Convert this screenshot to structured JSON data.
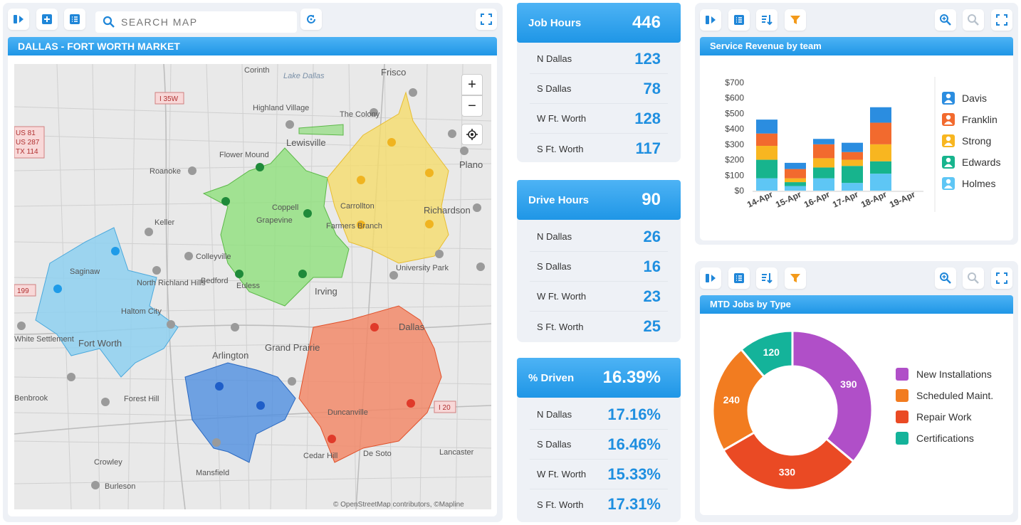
{
  "map_panel": {
    "search_placeholder": "SEARCH MAP",
    "title": "DALLAS - FORT WORTH MARKET",
    "attribution": "© OpenStreetMap contributors, ©Mapline",
    "zoom_in": "+",
    "zoom_out": "−",
    "places": [
      "Frisco",
      "Corinth",
      "Lake Dallas",
      "Highland Village",
      "The Colony",
      "Lewisville",
      "Flower Mound",
      "Roanoke",
      "Plano",
      "Coppell",
      "Grapevine",
      "Carrollton",
      "Farmers Branch",
      "Richardson",
      "Keller",
      "Colleyville",
      "Saginaw",
      "North Richland Hills",
      "Haltom City",
      "Bedford",
      "Euless",
      "Irving",
      "University Park",
      "Dallas",
      "Fort Worth",
      "White Settlement",
      "Arlington",
      "Grand Prairie",
      "Benbrook",
      "Forest Hill",
      "Duncanville",
      "Cedar Hill",
      "De Soto",
      "Lancaster",
      "Crowley",
      "Mansfield",
      "Burleson"
    ],
    "shields": [
      "I 35W",
      "US 81",
      "US 287",
      "TX 114",
      "199",
      "I 20"
    ]
  },
  "kpis": [
    {
      "label": "Job Hours",
      "value": "446",
      "rows": [
        {
          "label": "N Dallas",
          "value": "123"
        },
        {
          "label": "S Dallas",
          "value": "78"
        },
        {
          "label": "W Ft. Worth",
          "value": "128"
        },
        {
          "label": "S Ft. Worth",
          "value": "117"
        }
      ]
    },
    {
      "label": "Drive Hours",
      "value": "90",
      "rows": [
        {
          "label": "N Dallas",
          "value": "26"
        },
        {
          "label": "S Dallas",
          "value": "16"
        },
        {
          "label": "W Ft. Worth",
          "value": "23"
        },
        {
          "label": "S Ft. Worth",
          "value": "25"
        }
      ]
    },
    {
      "label": "% Driven",
      "value": "16.39%",
      "rows": [
        {
          "label": "N Dallas",
          "value": "17.16%"
        },
        {
          "label": "S Dallas",
          "value": "16.46%"
        },
        {
          "label": "W Ft. Worth",
          "value": "15.33%"
        },
        {
          "label": "S Ft. Worth",
          "value": "17.31%"
        }
      ]
    }
  ],
  "revenue_panel": {
    "title": "Service Revenue by team"
  },
  "jobs_panel": {
    "title": "MTD Jobs by Type"
  },
  "colors": {
    "accent": "#1f96e6",
    "kpi_value": "#1f8fe0",
    "filter": "#f39a1a"
  },
  "chart_data": [
    {
      "type": "bar",
      "stacked": true,
      "title": "Service Revenue by team",
      "categories": [
        "14-Apr",
        "15-Apr",
        "16-Apr",
        "17-Apr",
        "18-Apr",
        "19-Apr"
      ],
      "yticks": [
        "$0",
        "$100",
        "$200",
        "$300",
        "$400",
        "$500",
        "$600",
        "$700"
      ],
      "ylim": [
        0,
        700
      ],
      "legend_position": "right",
      "series": [
        {
          "name": "Holmes",
          "color": "#5ec6f5",
          "values": [
            80,
            30,
            80,
            50,
            110,
            0
          ]
        },
        {
          "name": "Edwards",
          "color": "#17b48d",
          "values": [
            120,
            25,
            70,
            110,
            80,
            0
          ]
        },
        {
          "name": "Strong",
          "color": "#f8b620",
          "values": [
            90,
            25,
            60,
            40,
            110,
            0
          ]
        },
        {
          "name": "Franklin",
          "color": "#f26a2e",
          "values": [
            80,
            60,
            90,
            50,
            140,
            0
          ]
        },
        {
          "name": "Davis",
          "color": "#2b8de0",
          "values": [
            90,
            40,
            35,
            60,
            100,
            0
          ]
        }
      ]
    },
    {
      "type": "pie",
      "donut": true,
      "title": "MTD Jobs by Type",
      "legend_position": "right",
      "slices": [
        {
          "name": "New Installations",
          "value": 390,
          "color": "#b04fc8"
        },
        {
          "name": "Repair Work",
          "value": 330,
          "color": "#ea4a24"
        },
        {
          "name": "Scheduled Maint.",
          "value": 240,
          "color": "#f27c20"
        },
        {
          "name": "Certifications",
          "value": 120,
          "color": "#14b39a"
        }
      ],
      "legend": [
        {
          "name": "New Installations",
          "color": "#b04fc8"
        },
        {
          "name": "Scheduled Maint.",
          "color": "#f27c20"
        },
        {
          "name": "Repair Work",
          "color": "#ea4a24"
        },
        {
          "name": "Certifications",
          "color": "#14b39a"
        }
      ]
    }
  ]
}
